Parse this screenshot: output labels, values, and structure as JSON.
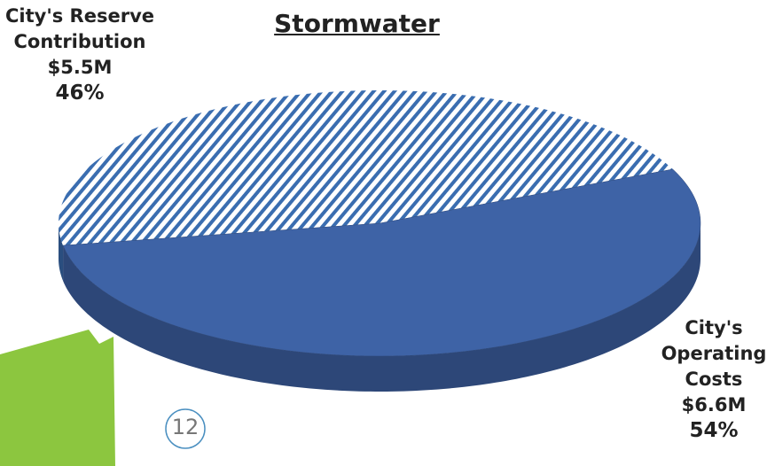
{
  "chart_data": {
    "type": "pie",
    "title": "Stormwater",
    "categories": [
      "City's Reserve Contribution",
      "City's Operating Costs"
    ],
    "values": [
      46,
      54
    ],
    "value_labels": [
      "46%",
      "54%"
    ],
    "amount_labels": [
      "$5.5M",
      "$6.6M"
    ],
    "colors": [
      "#3a6db0",
      "#3e63a6"
    ],
    "hatched": [
      true,
      false
    ]
  },
  "page_number": "12"
}
